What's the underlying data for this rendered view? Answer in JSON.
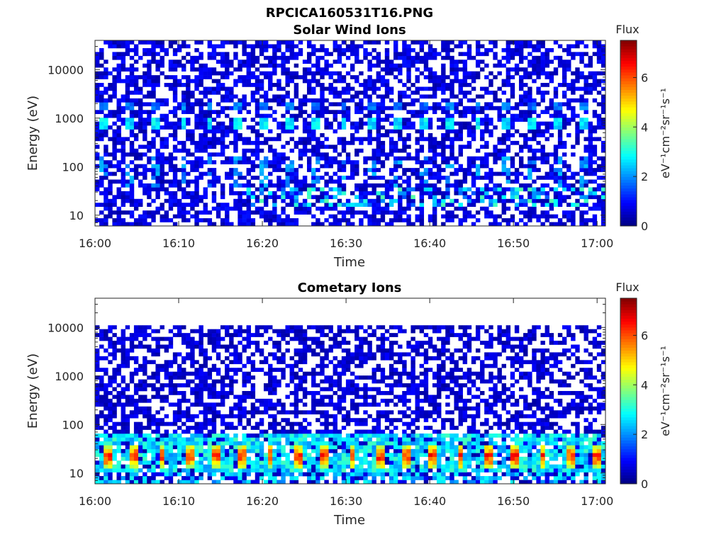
{
  "figure": {
    "filename_title": "RPCICA160531T16.PNG"
  },
  "chart_data": [
    {
      "type": "heatmap",
      "title": "Solar Wind Ions",
      "xlabel": "Time",
      "ylabel": "Energy (eV)",
      "x_ticks": [
        "16:00",
        "16:10",
        "16:20",
        "16:30",
        "16:40",
        "16:50",
        "17:00"
      ],
      "x_range_minutes": [
        0,
        61
      ],
      "y_scale": "log",
      "y_range_ev": [
        6,
        40000
      ],
      "y_ticks": [
        "10",
        "100",
        "1000",
        "10000"
      ],
      "colorbar": {
        "label": "Flux",
        "units": "eV⁻¹cm⁻²sr⁻¹s⁻¹",
        "range": [
          0,
          7.5
        ],
        "ticks": [
          "0",
          "2",
          "4",
          "6"
        ],
        "colormap": "jet"
      },
      "grid": false,
      "features": {
        "flux_data_upper_energy_ev": 40000,
        "periodic_bursts": {
          "start_minute": 0.5,
          "period_minutes": 3.2,
          "energy_ev": 750,
          "flux_peak": 2.8,
          "secondary_energy_ev": 1700,
          "secondary_flux": 2.0
        },
        "low_energy_band": {
          "energy_range_ev": [
            15,
            40
          ],
          "flux_peak": 3.5,
          "active_after_minute": 18
        },
        "background_flux": 0.9
      }
    },
    {
      "type": "heatmap",
      "title": "Cometary Ions",
      "xlabel": "Time",
      "ylabel": "Energy (eV)",
      "x_ticks": [
        "16:00",
        "16:10",
        "16:20",
        "16:30",
        "16:40",
        "16:50",
        "17:00"
      ],
      "x_range_minutes": [
        0,
        61
      ],
      "y_scale": "log",
      "y_range_ev": [
        6,
        40000
      ],
      "y_ticks": [
        "10",
        "100",
        "1000",
        "10000"
      ],
      "colorbar": {
        "label": "Flux",
        "units": "eV⁻¹cm⁻²sr⁻¹s⁻¹",
        "range": [
          0,
          7.5
        ],
        "ticks": [
          "0",
          "2",
          "4",
          "6"
        ],
        "colormap": "jet"
      },
      "grid": false,
      "features": {
        "flux_data_upper_energy_ev": 11000,
        "periodic_bursts": {
          "start_minute": 1.0,
          "period_minutes": 3.25,
          "energy_range_ev": [
            12,
            40
          ],
          "flux_peak": 6.8
        },
        "continuous_band": {
          "energy_range_ev": [
            10,
            60
          ],
          "flux_level": 2.8
        },
        "background_flux": 0.8
      }
    }
  ]
}
